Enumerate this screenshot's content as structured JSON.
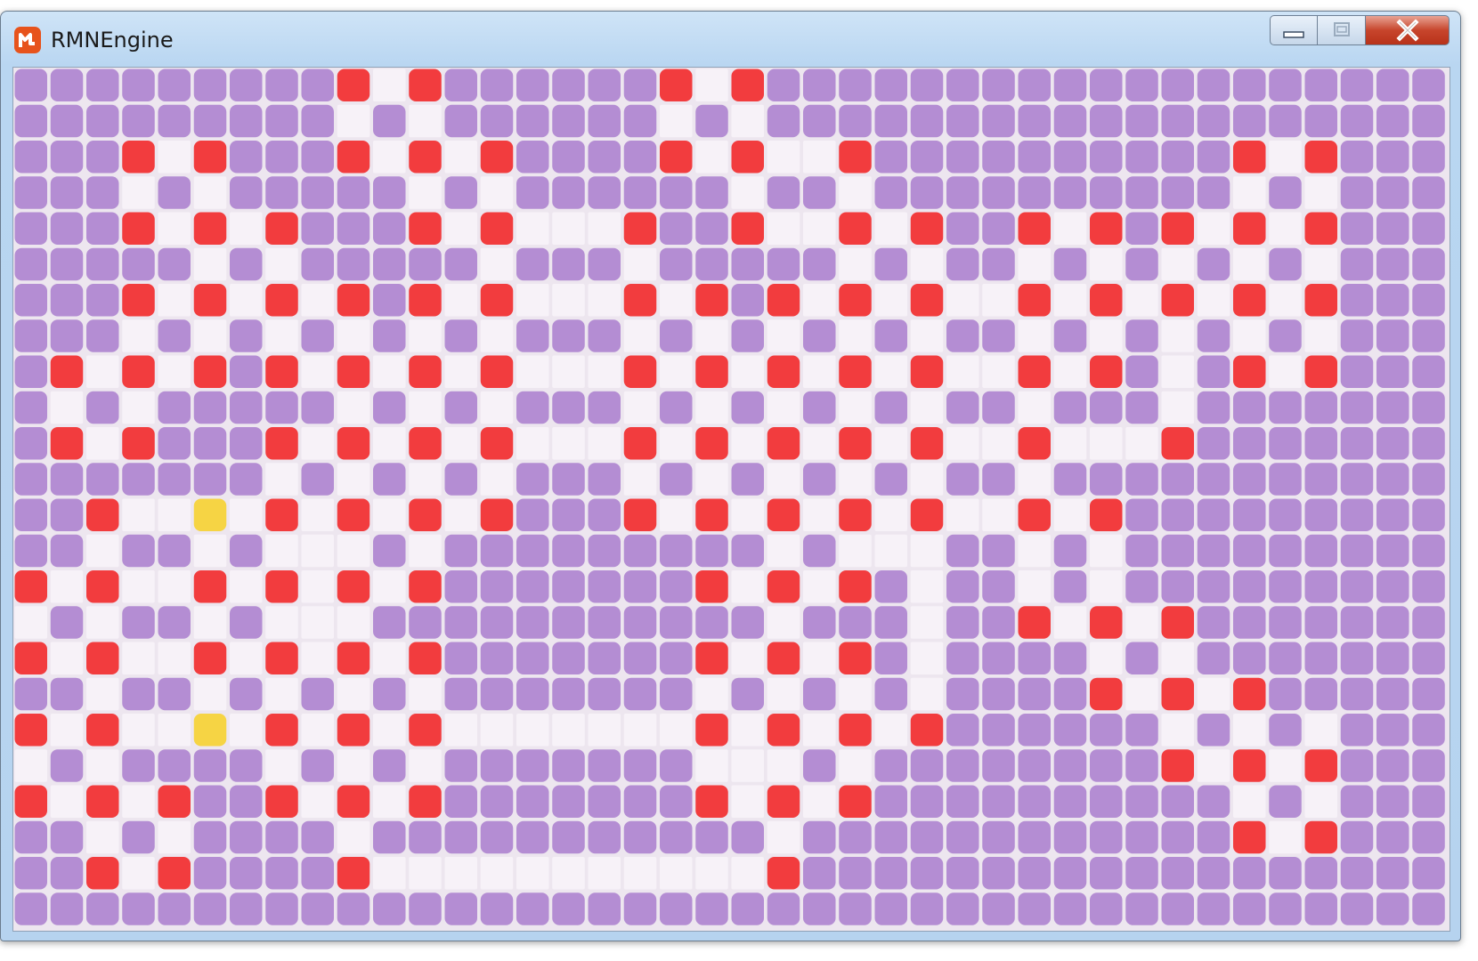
{
  "window": {
    "title": "RMNEngine"
  }
}
